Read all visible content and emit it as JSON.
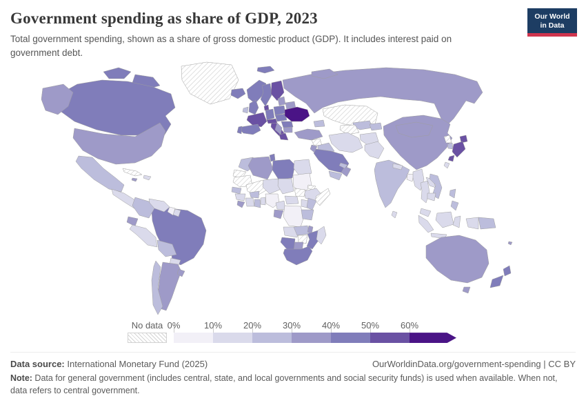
{
  "header": {
    "title": "Government spending as share of GDP, 2023",
    "subtitle": "Total government spending, shown as a share of gross domestic product (GDP). It includes interest paid on government debt.",
    "logo": {
      "line1": "Our World",
      "line2": "in Data",
      "bg_color": "#1d3d63",
      "accent_color": "#d0354e"
    }
  },
  "legend": {
    "no_data_label": "No data",
    "tick_labels": [
      "0%",
      "10%",
      "20%",
      "30%",
      "40%",
      "50%",
      "60%"
    ],
    "colors": [
      "#f2f0f7",
      "#dadaeb",
      "#bcbddc",
      "#9e9ac8",
      "#807dba",
      "#6a51a3",
      "#4a1486"
    ],
    "no_data_pattern": "diagonal-hatch"
  },
  "chart_data": {
    "type": "choropleth_map",
    "title": "Government spending as share of GDP, 2023",
    "unit": "% of GDP",
    "bins": [
      "0-10%",
      "10-20%",
      "20-30%",
      "30-40%",
      "40-50%",
      "50-60%",
      "60%+"
    ],
    "bin_colors": [
      "#f2f0f7",
      "#dadaeb",
      "#bcbddc",
      "#9e9ac8",
      "#807dba",
      "#6a51a3",
      "#4a1486"
    ],
    "countries": [
      {
        "id": "greenland",
        "name": "Greenland",
        "bin": "no-data"
      },
      {
        "id": "iceland",
        "name": "Iceland",
        "bin": 4
      },
      {
        "id": "canada",
        "name": "Canada",
        "bin": 4
      },
      {
        "id": "usa",
        "name": "United States",
        "bin": 3
      },
      {
        "id": "mexico",
        "name": "Mexico",
        "bin": 2
      },
      {
        "id": "central-america",
        "name": "Central America",
        "bin": 1
      },
      {
        "id": "panama",
        "name": "Panama",
        "bin": 3
      },
      {
        "id": "cuba",
        "name": "Cuba",
        "bin": "no-data"
      },
      {
        "id": "hispaniola",
        "name": "Haiti/Dominican Republic",
        "bin": 1
      },
      {
        "id": "jamaica",
        "name": "Jamaica",
        "bin": 3
      },
      {
        "id": "colombia",
        "name": "Colombia",
        "bin": 2
      },
      {
        "id": "venezuela",
        "name": "Venezuela",
        "bin": 1
      },
      {
        "id": "guyana",
        "name": "Guyana",
        "bin": 0
      },
      {
        "id": "suriname",
        "name": "Suriname",
        "bin": 1
      },
      {
        "id": "ecuador",
        "name": "Ecuador",
        "bin": 3
      },
      {
        "id": "peru",
        "name": "Peru",
        "bin": 1
      },
      {
        "id": "brazil",
        "name": "Brazil",
        "bin": 4
      },
      {
        "id": "bolivia",
        "name": "Bolivia",
        "bin": 2
      },
      {
        "id": "paraguay",
        "name": "Paraguay",
        "bin": 1
      },
      {
        "id": "chile",
        "name": "Chile",
        "bin": 2
      },
      {
        "id": "argentina",
        "name": "Argentina",
        "bin": 3
      },
      {
        "id": "uruguay",
        "name": "Uruguay",
        "bin": 3
      },
      {
        "id": "uk",
        "name": "United Kingdom",
        "bin": 4
      },
      {
        "id": "ireland",
        "name": "Ireland",
        "bin": 2
      },
      {
        "id": "norway",
        "name": "Norway",
        "bin": 4
      },
      {
        "id": "sweden",
        "name": "Sweden",
        "bin": 4
      },
      {
        "id": "finland",
        "name": "Finland",
        "bin": 5
      },
      {
        "id": "denmark",
        "name": "Denmark",
        "bin": 5
      },
      {
        "id": "germany",
        "name": "Germany",
        "bin": 4
      },
      {
        "id": "france",
        "name": "France",
        "bin": 5
      },
      {
        "id": "spain",
        "name": "Spain",
        "bin": 4
      },
      {
        "id": "portugal",
        "name": "Portugal",
        "bin": 4
      },
      {
        "id": "italy",
        "name": "Italy",
        "bin": 5
      },
      {
        "id": "austria-switzerland",
        "name": "Austria/Switzerland",
        "bin": 5
      },
      {
        "id": "poland",
        "name": "Poland",
        "bin": 4
      },
      {
        "id": "czechia-hungary",
        "name": "Czechia/Slovakia/Hungary",
        "bin": 4
      },
      {
        "id": "baltics",
        "name": "Baltic states",
        "bin": 3
      },
      {
        "id": "belarus",
        "name": "Belarus",
        "bin": 3
      },
      {
        "id": "ukraine",
        "name": "Ukraine",
        "bin": 6
      },
      {
        "id": "romania",
        "name": "Romania",
        "bin": 4
      },
      {
        "id": "balkans",
        "name": "Western Balkans",
        "bin": 3
      },
      {
        "id": "bulgaria",
        "name": "Bulgaria",
        "bin": 3
      },
      {
        "id": "greece",
        "name": "Greece",
        "bin": 5
      },
      {
        "id": "russia",
        "name": "Russia",
        "bin": 3
      },
      {
        "id": "kazakhstan",
        "name": "Kazakhstan",
        "bin": "no-data"
      },
      {
        "id": "uzbekistan",
        "name": "Uzbekistan",
        "bin": 2
      },
      {
        "id": "turkmenistan",
        "name": "Turkmenistan",
        "bin": "no-data"
      },
      {
        "id": "kyrgyzstan-tajikistan",
        "name": "Kyrgyzstan/Tajikistan",
        "bin": 2
      },
      {
        "id": "caucasus",
        "name": "Caucasus",
        "bin": 2
      },
      {
        "id": "turkey",
        "name": "Turkey",
        "bin": 3
      },
      {
        "id": "syria",
        "name": "Syria",
        "bin": "no-data"
      },
      {
        "id": "iraq",
        "name": "Iraq",
        "bin": 2
      },
      {
        "id": "iran",
        "name": "Iran",
        "bin": 1
      },
      {
        "id": "afghanistan",
        "name": "Afghanistan",
        "bin": 1
      },
      {
        "id": "pakistan",
        "name": "Pakistan",
        "bin": 1
      },
      {
        "id": "saudi-arabia",
        "name": "Saudi Arabia",
        "bin": 4
      },
      {
        "id": "jordan-israel",
        "name": "Jordan/Israel",
        "bin": 3
      },
      {
        "id": "yemen",
        "name": "Yemen",
        "bin": 2
      },
      {
        "id": "oman",
        "name": "Oman",
        "bin": 3
      },
      {
        "id": "uae-qatar",
        "name": "UAE/Qatar",
        "bin": 2
      },
      {
        "id": "morocco",
        "name": "Morocco",
        "bin": 2
      },
      {
        "id": "western-sahara",
        "name": "Western Sahara",
        "bin": "no-data"
      },
      {
        "id": "algeria",
        "name": "Algeria",
        "bin": 3
      },
      {
        "id": "tunisia",
        "name": "Tunisia",
        "bin": 4
      },
      {
        "id": "libya",
        "name": "Libya",
        "bin": 4
      },
      {
        "id": "egypt",
        "name": "Egypt",
        "bin": 1
      },
      {
        "id": "mauritania",
        "name": "Mauritania",
        "bin": "no-data"
      },
      {
        "id": "mali",
        "name": "Mali",
        "bin": "no-data"
      },
      {
        "id": "niger",
        "name": "Niger",
        "bin": 1
      },
      {
        "id": "chad",
        "name": "Chad",
        "bin": 1
      },
      {
        "id": "sudan",
        "name": "Sudan",
        "bin": 0
      },
      {
        "id": "eritrea",
        "name": "Eritrea",
        "bin": "no-data"
      },
      {
        "id": "ethiopia",
        "name": "Ethiopia",
        "bin": 1
      },
      {
        "id": "somalia",
        "name": "Somalia",
        "bin": "no-data"
      },
      {
        "id": "south-sudan",
        "name": "South Sudan",
        "bin": "no-data"
      },
      {
        "id": "senegal",
        "name": "Senegal",
        "bin": 2
      },
      {
        "id": "guinea",
        "name": "Guinea",
        "bin": 1
      },
      {
        "id": "sierra-leone-liberia",
        "name": "Sierra Leone/Liberia",
        "bin": 3
      },
      {
        "id": "cote-divoire",
        "name": "Côte d'Ivoire",
        "bin": 1
      },
      {
        "id": "ghana",
        "name": "Ghana",
        "bin": 2
      },
      {
        "id": "burkina-faso",
        "name": "Burkina Faso",
        "bin": 2
      },
      {
        "id": "benin-togo",
        "name": "Benin/Togo",
        "bin": 1
      },
      {
        "id": "nigeria",
        "name": "Nigeria",
        "bin": 0
      },
      {
        "id": "cameroon",
        "name": "Cameroon",
        "bin": 1
      },
      {
        "id": "central-african-republic",
        "name": "Central African Republic",
        "bin": 1
      },
      {
        "id": "gabon-congo",
        "name": "Gabon/Congo",
        "bin": 3
      },
      {
        "id": "drc",
        "name": "Democratic Republic of Congo",
        "bin": 0
      },
      {
        "id": "uganda",
        "name": "Uganda",
        "bin": 1
      },
      {
        "id": "kenya",
        "name": "Kenya",
        "bin": 2
      },
      {
        "id": "tanzania",
        "name": "Tanzania",
        "bin": 2
      },
      {
        "id": "angola",
        "name": "Angola",
        "bin": 1
      },
      {
        "id": "zambia",
        "name": "Zambia",
        "bin": 2
      },
      {
        "id": "malawi",
        "name": "Malawi",
        "bin": 3
      },
      {
        "id": "mozambique",
        "name": "Mozambique",
        "bin": 4
      },
      {
        "id": "zimbabwe",
        "name": "Zimbabwe",
        "bin": "no-data"
      },
      {
        "id": "botswana",
        "name": "Botswana",
        "bin": 3
      },
      {
        "id": "namibia",
        "name": "Namibia",
        "bin": 4
      },
      {
        "id": "south-africa",
        "name": "South Africa",
        "bin": 4
      },
      {
        "id": "madagascar",
        "name": "Madagascar",
        "bin": 1
      },
      {
        "id": "china",
        "name": "China",
        "bin": 3
      },
      {
        "id": "mongolia",
        "name": "Mongolia",
        "bin": 3
      },
      {
        "id": "india",
        "name": "India",
        "bin": 2
      },
      {
        "id": "nepal",
        "name": "Nepal",
        "bin": 1
      },
      {
        "id": "bangladesh",
        "name": "Bangladesh",
        "bin": 0
      },
      {
        "id": "sri-lanka",
        "name": "Sri Lanka",
        "bin": 1
      },
      {
        "id": "myanmar",
        "name": "Myanmar",
        "bin": 1
      },
      {
        "id": "thailand",
        "name": "Thailand",
        "bin": 1
      },
      {
        "id": "laos",
        "name": "Laos",
        "bin": 1
      },
      {
        "id": "vietnam",
        "name": "Vietnam",
        "bin": 2
      },
      {
        "id": "cambodia",
        "name": "Cambodia",
        "bin": 1
      },
      {
        "id": "malaysia",
        "name": "Malaysia",
        "bin": 1
      },
      {
        "id": "indonesia",
        "name": "Indonesia",
        "bin": 1
      },
      {
        "id": "png",
        "name": "Papua New Guinea",
        "bin": 2
      },
      {
        "id": "philippines",
        "name": "Philippines",
        "bin": 2
      },
      {
        "id": "taiwan",
        "name": "Taiwan",
        "bin": 1
      },
      {
        "id": "japan",
        "name": "Japan",
        "bin": 5
      },
      {
        "id": "south-korea",
        "name": "South Korea",
        "bin": 2
      },
      {
        "id": "north-korea",
        "name": "North Korea",
        "bin": "no-data"
      },
      {
        "id": "australia",
        "name": "Australia",
        "bin": 3
      },
      {
        "id": "new-zealand",
        "name": "New Zealand",
        "bin": 4
      },
      {
        "id": "fiji",
        "name": "Fiji",
        "bin": 3
      }
    ]
  },
  "footer": {
    "source_label": "Data source:",
    "source_text": " International Monetary Fund (2025)",
    "link_text": "OurWorldinData.org/government-spending | CC BY",
    "note_label": "Note:",
    "note_text": " Data for general government (includes central, state, and local governments and social security funds) is used when available. When not, data refers to central government."
  }
}
